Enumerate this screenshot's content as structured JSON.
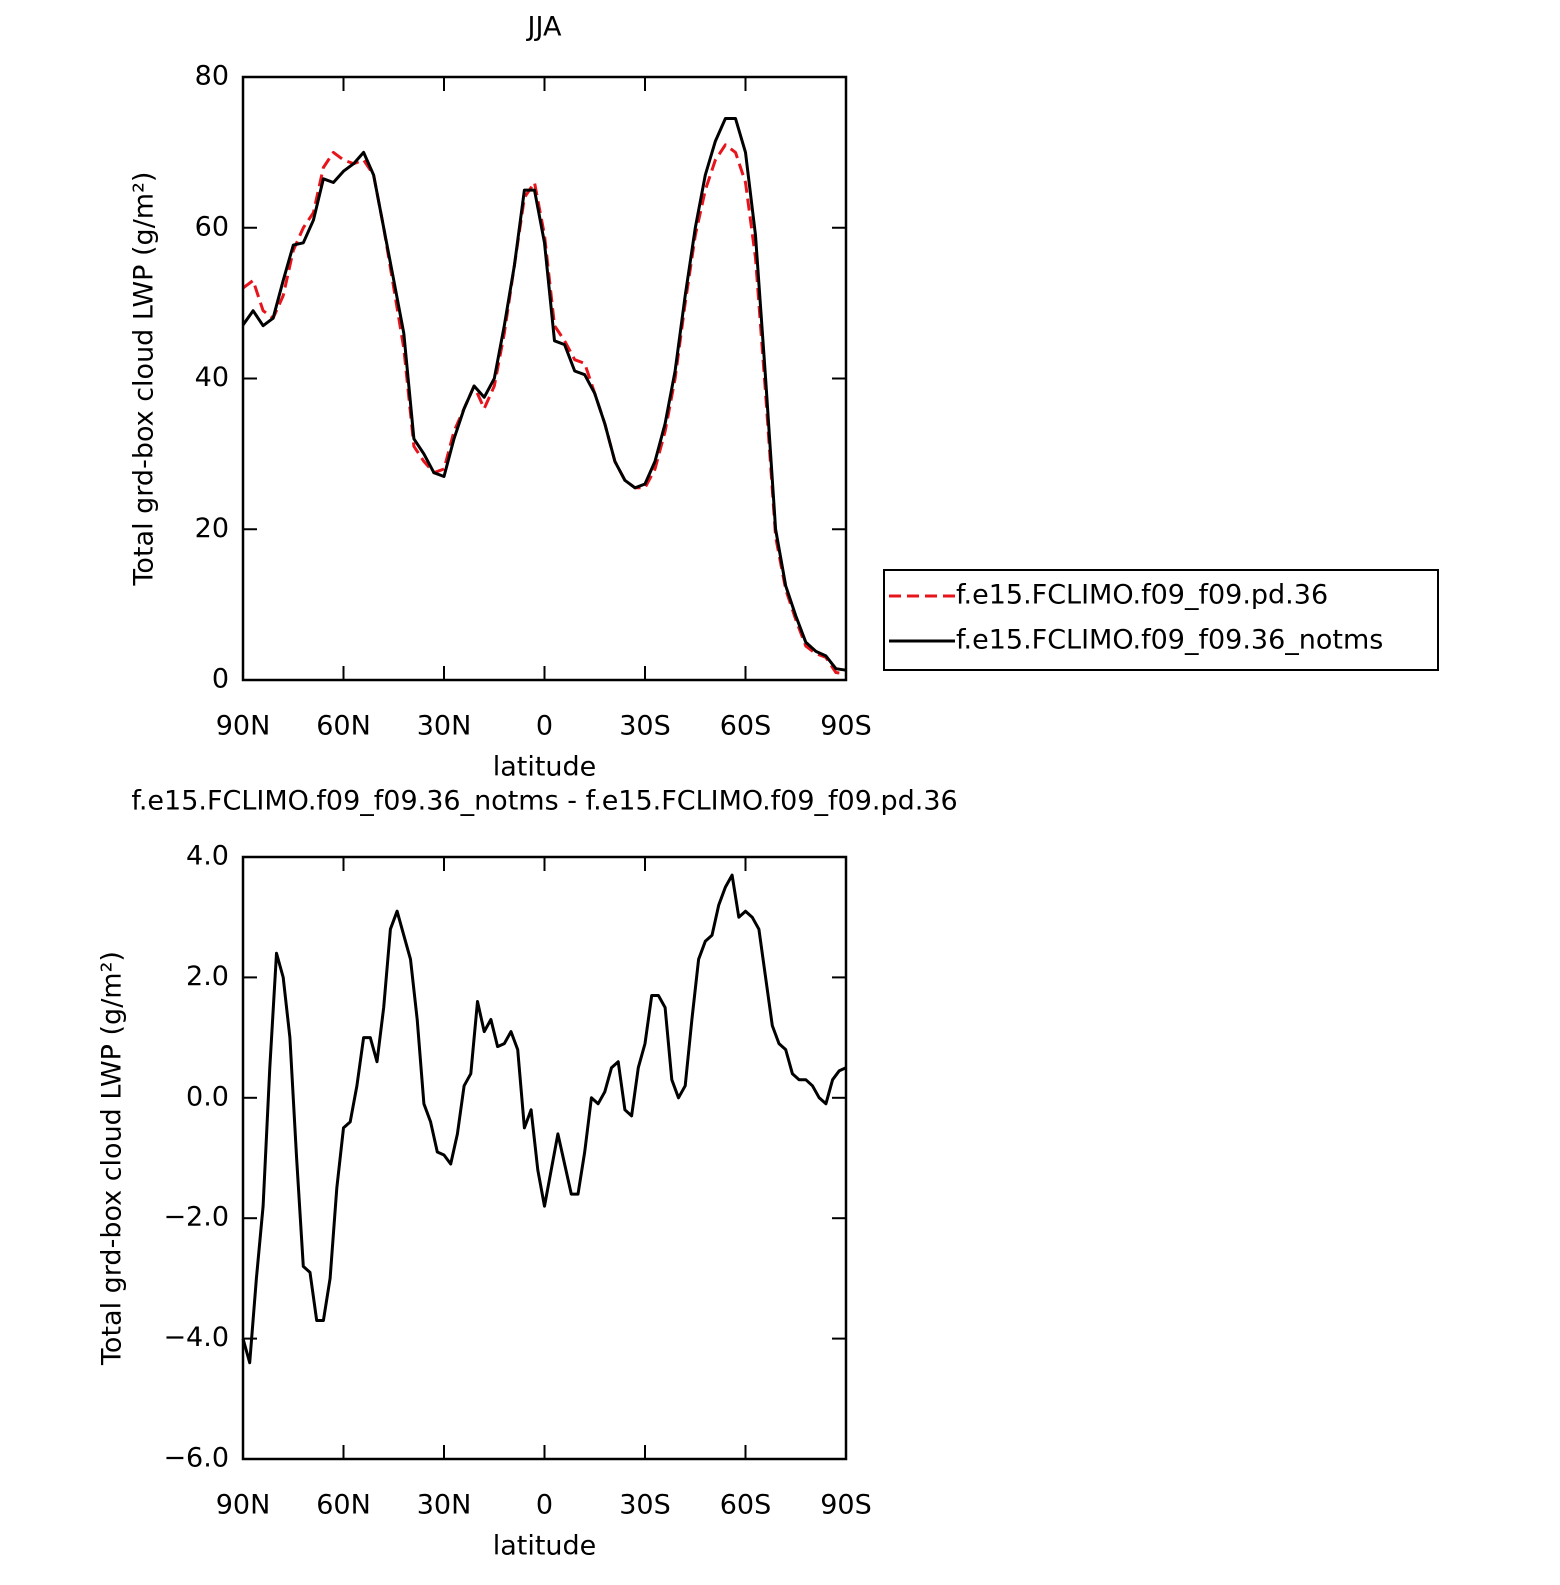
{
  "chart_data": [
    {
      "type": "line",
      "title": "JJA",
      "xlabel": "latitude",
      "ylabel": "Total grd-box cloud LWP (g/m²)",
      "x": [
        90,
        87,
        84,
        81,
        78,
        75,
        72,
        69,
        66,
        63,
        60,
        57,
        54,
        51,
        48,
        45,
        42,
        39,
        36,
        33,
        30,
        27,
        24,
        21,
        18,
        15,
        12,
        9,
        6,
        3,
        0,
        -3,
        -6,
        -9,
        -12,
        -15,
        -18,
        -21,
        -24,
        -27,
        -30,
        -33,
        -36,
        -39,
        -42,
        -45,
        -48,
        -51,
        -54,
        -57,
        -60,
        -63,
        -66,
        -69,
        -72,
        -75,
        -78,
        -81,
        -84,
        -87,
        -90
      ],
      "series": [
        {
          "name": "f.e15.FCLIMO.f09_f09.pd.36",
          "color": "#e8141b",
          "line_style": "dashed",
          "values": [
            52,
            53,
            49,
            48,
            51,
            57,
            60,
            62,
            68,
            70,
            69,
            68.5,
            69,
            67,
            60,
            52,
            44,
            31,
            29,
            27.5,
            28,
            33,
            36,
            39,
            36,
            39,
            46,
            55,
            64,
            66,
            59,
            47,
            45,
            42.5,
            42,
            38,
            34,
            29,
            26.5,
            25.5,
            25.5,
            28,
            33,
            40,
            50,
            59,
            65,
            69,
            71,
            70,
            66,
            56,
            38,
            19,
            12,
            8,
            4.5,
            3.5,
            3,
            1,
            0.8
          ]
        },
        {
          "name": "f.e15.FCLIMO.f09_f09.36_notms",
          "color": "#000000",
          "line_style": "solid",
          "values": [
            47.1,
            49,
            47,
            48,
            53,
            57.7,
            58,
            61,
            66.5,
            66,
            67.5,
            68.5,
            70,
            67,
            60,
            53,
            46,
            32,
            30,
            27.5,
            27,
            32,
            36,
            39,
            37.5,
            40,
            47,
            55,
            65,
            65,
            58,
            45,
            44.5,
            41,
            40.5,
            38,
            34,
            29,
            26.5,
            25.5,
            26,
            29,
            34,
            41,
            51,
            60,
            67,
            71.5,
            74.5,
            74.5,
            70,
            59,
            40,
            20,
            12.5,
            8.5,
            5,
            3.8,
            3.2,
            1.5,
            1.3
          ]
        }
      ],
      "xlim": [
        90,
        -90
      ],
      "xticks": [
        {
          "value": 90,
          "label": "90N"
        },
        {
          "value": 60,
          "label": "60N"
        },
        {
          "value": 30,
          "label": "30N"
        },
        0,
        {
          "value": -30,
          "label": "30S"
        },
        {
          "value": -60,
          "label": "60S"
        },
        {
          "value": -90,
          "label": "90S"
        }
      ],
      "ylim": [
        0,
        80
      ],
      "yticks": [
        0,
        20,
        40,
        60,
        80
      ],
      "legend": "right"
    },
    {
      "type": "line",
      "title": "f.e15.FCLIMO.f09_f09.36_notms - f.e15.FCLIMO.f09_f09.pd.36",
      "xlabel": "latitude",
      "ylabel": "Total grd-box cloud LWP (g/m²)",
      "x": [
        90,
        88,
        86,
        84,
        82,
        80,
        78,
        76,
        74,
        72,
        70,
        68,
        66,
        64,
        62,
        60,
        58,
        56,
        54,
        52,
        50,
        48,
        46,
        44,
        42,
        40,
        38,
        36,
        34,
        32,
        30,
        28,
        26,
        24,
        22,
        20,
        18,
        16,
        14,
        12,
        10,
        8,
        6,
        4,
        2,
        0,
        -2,
        -4,
        -6,
        -8,
        -10,
        -12,
        -14,
        -16,
        -18,
        -20,
        -22,
        -24,
        -26,
        -28,
        -30,
        -32,
        -34,
        -36,
        -38,
        -40,
        -42,
        -44,
        -46,
        -48,
        -50,
        -52,
        -54,
        -56,
        -58,
        -60,
        -62,
        -64,
        -66,
        -68,
        -70,
        -72,
        -74,
        -76,
        -78,
        -80,
        -82,
        -84,
        -86,
        -88,
        -90
      ],
      "series": [
        {
          "name": "f.e15.FCLIMO.f09_f09.36_notms - f.e15.FCLIMO.f09_f09.pd.36",
          "color": "#000000",
          "line_style": "solid",
          "values": [
            -4.0,
            -4.4,
            -3.0,
            -1.8,
            0.5,
            2.4,
            2.0,
            1.0,
            -1.0,
            -2.8,
            -2.9,
            -3.7,
            -3.7,
            -3.0,
            -1.5,
            -0.5,
            -0.4,
            0.2,
            1.0,
            1.0,
            0.6,
            1.5,
            2.8,
            3.1,
            2.7,
            2.3,
            1.3,
            -0.1,
            -0.4,
            -0.9,
            -0.95,
            -1.1,
            -0.6,
            0.2,
            0.4,
            1.6,
            1.1,
            1.3,
            0.85,
            0.9,
            1.1,
            0.8,
            -0.5,
            -0.2,
            -1.2,
            -1.8,
            -1.2,
            -0.6,
            -1.1,
            -1.6,
            -1.6,
            -0.9,
            0.0,
            -0.1,
            0.1,
            0.5,
            0.6,
            -0.2,
            -0.3,
            0.5,
            0.9,
            1.7,
            1.7,
            1.5,
            0.3,
            0.0,
            0.2,
            1.3,
            2.3,
            2.6,
            2.7,
            3.2,
            3.5,
            3.7,
            3.0,
            3.1,
            3.0,
            2.8,
            2.0,
            1.2,
            0.9,
            0.8,
            0.4,
            0.3,
            0.3,
            0.2,
            0.0,
            -0.1,
            0.3,
            0.45,
            0.5
          ]
        }
      ],
      "xlim": [
        90,
        -90
      ],
      "xticks": [
        {
          "value": 90,
          "label": "90N"
        },
        {
          "value": 60,
          "label": "60N"
        },
        {
          "value": 30,
          "label": "30N"
        },
        0,
        {
          "value": -30,
          "label": "30S"
        },
        {
          "value": -60,
          "label": "60S"
        },
        {
          "value": -90,
          "label": "90S"
        }
      ],
      "ylim": [
        -6,
        4
      ],
      "yticks": [
        {
          "value": -6,
          "label": "−6.0"
        },
        {
          "value": -4,
          "label": "−4.0"
        },
        {
          "value": -2,
          "label": "−2.0"
        },
        {
          "value": 0,
          "label": "0.0"
        },
        {
          "value": 2,
          "label": "2.0"
        },
        {
          "value": 4,
          "label": "4.0"
        }
      ]
    }
  ]
}
